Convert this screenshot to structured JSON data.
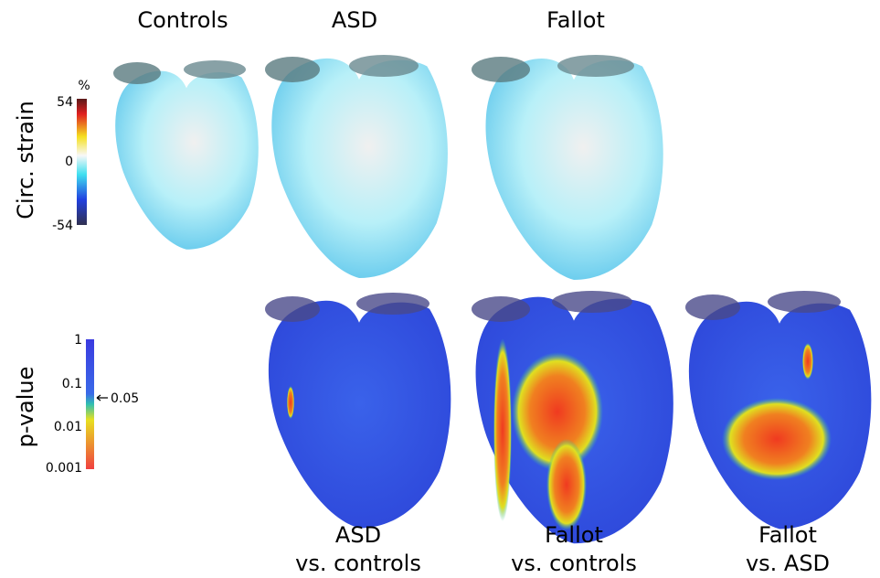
{
  "columns": {
    "top": [
      "Controls",
      "ASD",
      "Fallot"
    ]
  },
  "row_labels": [
    "Circ. strain",
    "p-value"
  ],
  "strain_colorbar": {
    "unit": "%",
    "ticks": [
      "54",
      "0",
      "-54"
    ]
  },
  "pvalue_colorbar": {
    "ticks": [
      "1",
      "0.1",
      "0.01",
      "0.001"
    ],
    "marker": "0.05"
  },
  "bottom_labels": [
    [
      "ASD",
      "vs. controls"
    ],
    [
      "Fallot",
      "vs. controls"
    ],
    [
      "Fallot",
      "vs. ASD"
    ]
  ]
}
